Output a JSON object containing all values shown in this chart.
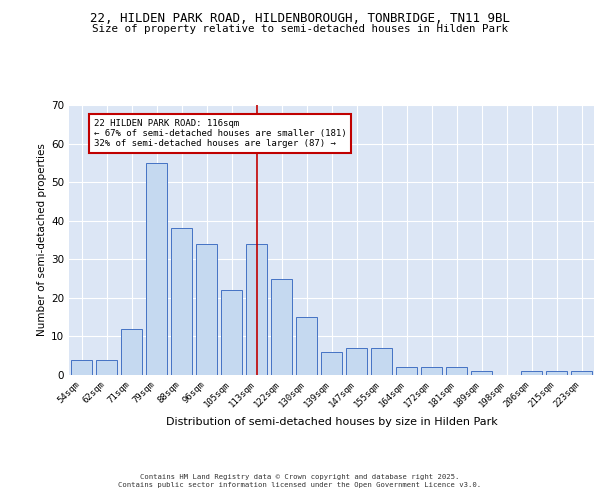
{
  "title1": "22, HILDEN PARK ROAD, HILDENBOROUGH, TONBRIDGE, TN11 9BL",
  "title2": "Size of property relative to semi-detached houses in Hilden Park",
  "xlabel": "Distribution of semi-detached houses by size in Hilden Park",
  "ylabel": "Number of semi-detached properties",
  "categories": [
    "54sqm",
    "62sqm",
    "71sqm",
    "79sqm",
    "88sqm",
    "96sqm",
    "105sqm",
    "113sqm",
    "122sqm",
    "130sqm",
    "139sqm",
    "147sqm",
    "155sqm",
    "164sqm",
    "172sqm",
    "181sqm",
    "189sqm",
    "198sqm",
    "206sqm",
    "215sqm",
    "223sqm"
  ],
  "values": [
    4,
    4,
    12,
    55,
    38,
    34,
    22,
    34,
    25,
    15,
    6,
    7,
    7,
    2,
    2,
    2,
    1,
    0,
    1,
    1,
    1
  ],
  "bar_color": "#c5d9f0",
  "bar_edge_color": "#4472c4",
  "vline_color": "#c00000",
  "annotation_line1": "22 HILDEN PARK ROAD: 116sqm",
  "annotation_line2": "← 67% of semi-detached houses are smaller (181)",
  "annotation_line3": "32% of semi-detached houses are larger (87) →",
  "annotation_box_color": "#c00000",
  "ylim": [
    0,
    70
  ],
  "yticks": [
    0,
    10,
    20,
    30,
    40,
    50,
    60,
    70
  ],
  "bg_color": "#dce6f5",
  "footer1": "Contains HM Land Registry data © Crown copyright and database right 2025.",
  "footer2": "Contains public sector information licensed under the Open Government Licence v3.0."
}
